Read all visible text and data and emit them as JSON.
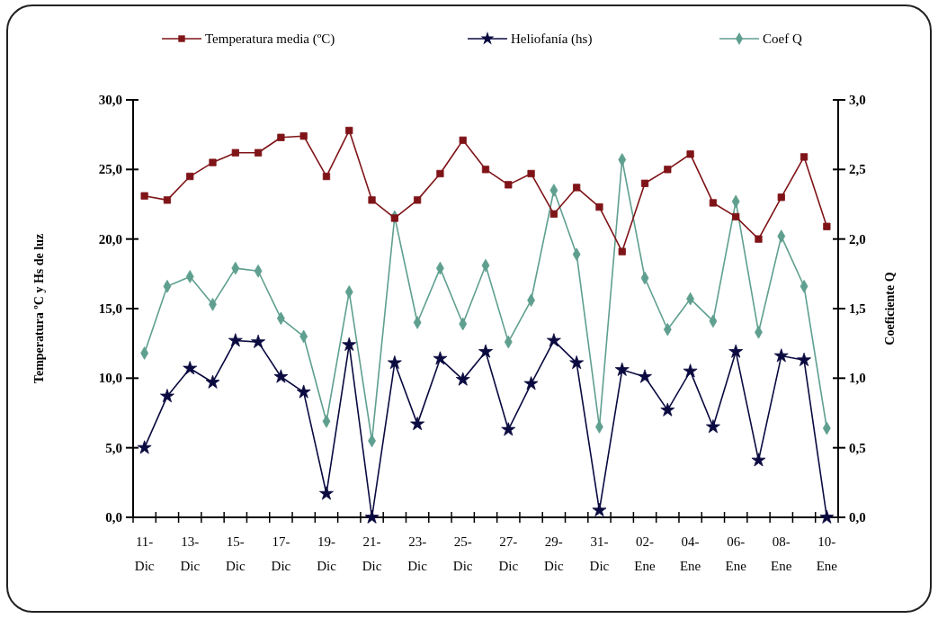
{
  "chart_data": {
    "type": "line",
    "categories": [
      "11-Dic",
      null,
      "13-Dic",
      null,
      "15-Dic",
      null,
      "17-Dic",
      null,
      "19-Dic",
      null,
      "21-Dic",
      null,
      "23-Dic",
      null,
      "25-Dic",
      null,
      "27-Dic",
      null,
      "29-Dic",
      null,
      "31-Dic",
      null,
      "02-Ene",
      null,
      "04-Ene",
      null,
      "06-Ene",
      null,
      "08-Ene",
      null,
      "10-Ene"
    ],
    "series": [
      {
        "name": "Temperatura media (ºC)",
        "color": "#7f1418",
        "marker": "square",
        "values": [
          23.1,
          22.8,
          24.5,
          25.5,
          26.2,
          26.2,
          27.3,
          27.4,
          24.5,
          27.8,
          22.8,
          21.5,
          22.8,
          24.7,
          27.1,
          25.0,
          23.9,
          24.7,
          21.8,
          23.7,
          22.3,
          19.1,
          24.0,
          25.0,
          26.1,
          22.6,
          21.6,
          20.0,
          23.0,
          25.9,
          20.9
        ]
      },
      {
        "name": "Heliofanía (hs)",
        "color": "#0a0a40",
        "marker": "star",
        "values": [
          5.0,
          8.7,
          10.7,
          9.7,
          12.7,
          12.6,
          10.1,
          9.0,
          1.7,
          12.4,
          0.0,
          11.1,
          6.7,
          11.4,
          9.9,
          11.9,
          6.3,
          9.6,
          12.7,
          11.1,
          0.5,
          10.6,
          10.1,
          7.7,
          10.5,
          6.5,
          11.9,
          4.1,
          11.6,
          11.3,
          0.0
        ]
      },
      {
        "name": "Coef Q",
        "color": "#5f9f8f",
        "marker": "diamond",
        "axis": "y2",
        "values": [
          1.18,
          1.66,
          1.73,
          1.53,
          1.79,
          1.77,
          1.43,
          1.3,
          0.69,
          1.62,
          0.55,
          2.16,
          1.4,
          1.79,
          1.39,
          1.81,
          1.26,
          1.56,
          2.35,
          1.89,
          0.65,
          2.57,
          1.72,
          1.35,
          1.57,
          1.41,
          2.27,
          1.33,
          2.02,
          1.66,
          0.64
        ]
      }
    ],
    "ylabel": "Temperatura ºC y Hs de luz",
    "y2label": "Coeficiente Q",
    "ylim": [
      0,
      30
    ],
    "yticks": [
      {
        "value": 0,
        "label": "0,0"
      },
      {
        "value": 5,
        "label": "5,0"
      },
      {
        "value": 10,
        "label": "10,0"
      },
      {
        "value": 15,
        "label": "15,0"
      },
      {
        "value": 20,
        "label": "20,0"
      },
      {
        "value": 25,
        "label": "25,0"
      },
      {
        "value": 30,
        "label": "30,0"
      }
    ],
    "y2lim": [
      0,
      3
    ],
    "y2ticks": [
      {
        "value": 0,
        "label": "0,0"
      },
      {
        "value": 0.5,
        "label": "0,5"
      },
      {
        "value": 1,
        "label": "1,0"
      },
      {
        "value": 1.5,
        "label": "1,5"
      },
      {
        "value": 2,
        "label": "2,0"
      },
      {
        "value": 2.5,
        "label": "2,5"
      },
      {
        "value": 3,
        "label": "3,0"
      }
    ],
    "grid": false,
    "legend": "top"
  }
}
